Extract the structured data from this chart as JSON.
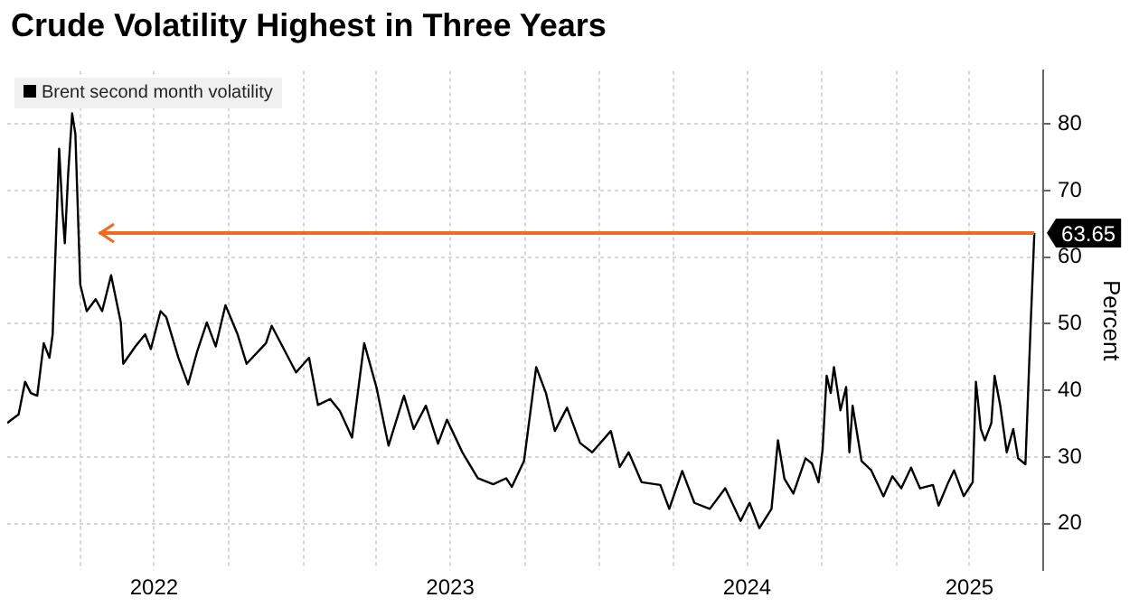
{
  "chart_data": {
    "type": "line",
    "title": "Crude Volatility Highest in Three Years",
    "ylabel": "Percent",
    "x": [
      "2022-01-01",
      "2022-01-15",
      "2022-01-23",
      "2022-01-30",
      "2022-02-07",
      "2022-02-15",
      "2022-02-22",
      "2022-02-26",
      "2022-03-02",
      "2022-03-06",
      "2022-03-10",
      "2022-03-13",
      "2022-03-17",
      "2022-03-22",
      "2022-03-26",
      "2022-04-01",
      "2022-04-09",
      "2022-04-20",
      "2022-04-28",
      "2022-05-09",
      "2022-05-21",
      "2022-05-24",
      "2022-06-08",
      "2022-06-20",
      "2022-06-27",
      "2022-07-09",
      "2022-07-16",
      "2022-07-31",
      "2022-08-12",
      "2022-08-23",
      "2022-09-04",
      "2022-09-15",
      "2022-09-27",
      "2022-10-12",
      "2022-10-23",
      "2022-11-16",
      "2022-11-23",
      "2022-12-08",
      "2022-12-23",
      "2023-01-08",
      "2023-01-19",
      "2023-02-03",
      "2023-02-15",
      "2023-03-02",
      "2023-03-17",
      "2023-04-01",
      "2023-04-16",
      "2023-05-05",
      "2023-05-17",
      "2023-06-01",
      "2023-06-16",
      "2023-06-27",
      "2023-07-16",
      "2023-08-04",
      "2023-08-23",
      "2023-09-08",
      "2023-09-15",
      "2023-09-30",
      "2023-10-15",
      "2023-10-27",
      "2023-11-07",
      "2023-11-22",
      "2023-12-08",
      "2023-12-23",
      "2024-01-15",
      "2024-01-26",
      "2024-02-06",
      "2024-02-22",
      "2024-03-16",
      "2024-03-27",
      "2024-04-12",
      "2024-04-27",
      "2024-05-16",
      "2024-06-04",
      "2024-06-23",
      "2024-07-04",
      "2024-07-16",
      "2024-07-31",
      "2024-08-08",
      "2024-08-16",
      "2024-08-27",
      "2024-09-11",
      "2024-09-19",
      "2024-09-27",
      "2024-10-02",
      "2024-10-07",
      "2024-10-12",
      "2024-10-16",
      "2024-10-24",
      "2024-10-31",
      "2024-11-04",
      "2024-11-08",
      "2024-11-19",
      "2024-12-01",
      "2024-12-16",
      "2024-12-27",
      "2025-01-07",
      "2025-01-19",
      "2025-01-30",
      "2025-02-15",
      "2025-02-22",
      "2025-03-06",
      "2025-03-13",
      "2025-03-25",
      "2025-04-05",
      "2025-04-09",
      "2025-04-15",
      "2025-04-20",
      "2025-04-28",
      "2025-05-02",
      "2025-05-09",
      "2025-05-17",
      "2025-05-25",
      "2025-05-31",
      "2025-06-09",
      "2025-06-15",
      "2025-06-20"
    ],
    "series": [
      {
        "name": "Brent second month volatility",
        "color": "#000000",
        "values": [
          35.1,
          36.4,
          41.3,
          39.6,
          39.2,
          47.1,
          44.9,
          48.4,
          62.6,
          76.3,
          67,
          62.1,
          72.3,
          81.6,
          78.5,
          55.9,
          51.9,
          53.7,
          51.9,
          57.3,
          50.2,
          44,
          46.6,
          48.4,
          46.2,
          51.9,
          51,
          44.9,
          40.9,
          45.8,
          50.2,
          46.6,
          52.8,
          48.4,
          44,
          47.1,
          49.7,
          46.2,
          42.7,
          44.9,
          37.8,
          38.7,
          36.9,
          32.9,
          47.1,
          40.5,
          31.7,
          39.2,
          34.2,
          37.7,
          32,
          35.6,
          30.7,
          26.8,
          25.9,
          26.8,
          25.5,
          29.4,
          43.5,
          39.6,
          33.9,
          37.4,
          32.1,
          30.7,
          33.9,
          28.5,
          30.7,
          26.2,
          25.8,
          22.2,
          27.9,
          23.1,
          22.2,
          25.3,
          20.4,
          23.1,
          19.3,
          22.2,
          32.5,
          26.7,
          24.5,
          29.8,
          29,
          26.2,
          31.1,
          42.2,
          39.6,
          43.5,
          37,
          40.5,
          30.7,
          37.7,
          29.4,
          28,
          24.1,
          27.1,
          25.3,
          28.4,
          25.3,
          25.8,
          22.7,
          26.2,
          28,
          24.1,
          26.2,
          41.3,
          34.2,
          32.5,
          35.1,
          42.2,
          37.7,
          30.7,
          34.2,
          29.8,
          28.9,
          48.4,
          63.65
        ],
        "value_labels": [
          null,
          null,
          null,
          null,
          null,
          null,
          null,
          null,
          null,
          null,
          null,
          null,
          null,
          null,
          null,
          null,
          null,
          null,
          null,
          null,
          null,
          null,
          null,
          null,
          null,
          null,
          null,
          null,
          null,
          null,
          null,
          null,
          null,
          null,
          null,
          null,
          null,
          null,
          null,
          null,
          null,
          null,
          null,
          null,
          null,
          null,
          null,
          null,
          null,
          null,
          null,
          null,
          null,
          null,
          null,
          null,
          null,
          null,
          null,
          null,
          null,
          null,
          null,
          null,
          null,
          null,
          null,
          null,
          null,
          null,
          null,
          null,
          null,
          null,
          null,
          null,
          null,
          null,
          null,
          null,
          null,
          null,
          null,
          null,
          null,
          null,
          null,
          null,
          null,
          null,
          null,
          null,
          null,
          null,
          null,
          null,
          null,
          null,
          null,
          null,
          null,
          null,
          null,
          null,
          null,
          null,
          null,
          null,
          null,
          null,
          null,
          null,
          null,
          null,
          null,
          null,
          "63.65"
        ]
      }
    ],
    "xlim": [
      "2022-01-01",
      "2025-07-01"
    ],
    "xticks": [
      {
        "value": "2022-04-01",
        "label": null
      },
      {
        "value": "2022-07-01",
        "label": "2022"
      },
      {
        "value": "2022-10-01",
        "label": null
      },
      {
        "value": "2023-01-01",
        "label": null
      },
      {
        "value": "2023-04-01",
        "label": null
      },
      {
        "value": "2023-07-01",
        "label": "2023"
      },
      {
        "value": "2023-10-01",
        "label": null
      },
      {
        "value": "2024-01-01",
        "label": null
      },
      {
        "value": "2024-04-01",
        "label": null
      },
      {
        "value": "2024-07-01",
        "label": "2024"
      },
      {
        "value": "2024-10-01",
        "label": null
      },
      {
        "value": "2025-01-01",
        "label": null
      },
      {
        "value": "2025-04-01",
        "label": "2025"
      }
    ],
    "ylim": [
      13,
      88
    ],
    "yticks": [
      20,
      30,
      40,
      50,
      60,
      70,
      80
    ],
    "ref_lines": [
      {
        "axis": "y",
        "value": 63.65,
        "color": "#f26a21"
      }
    ],
    "grid": true,
    "legend": "top left",
    "marker": "none",
    "line_style": "solid"
  }
}
